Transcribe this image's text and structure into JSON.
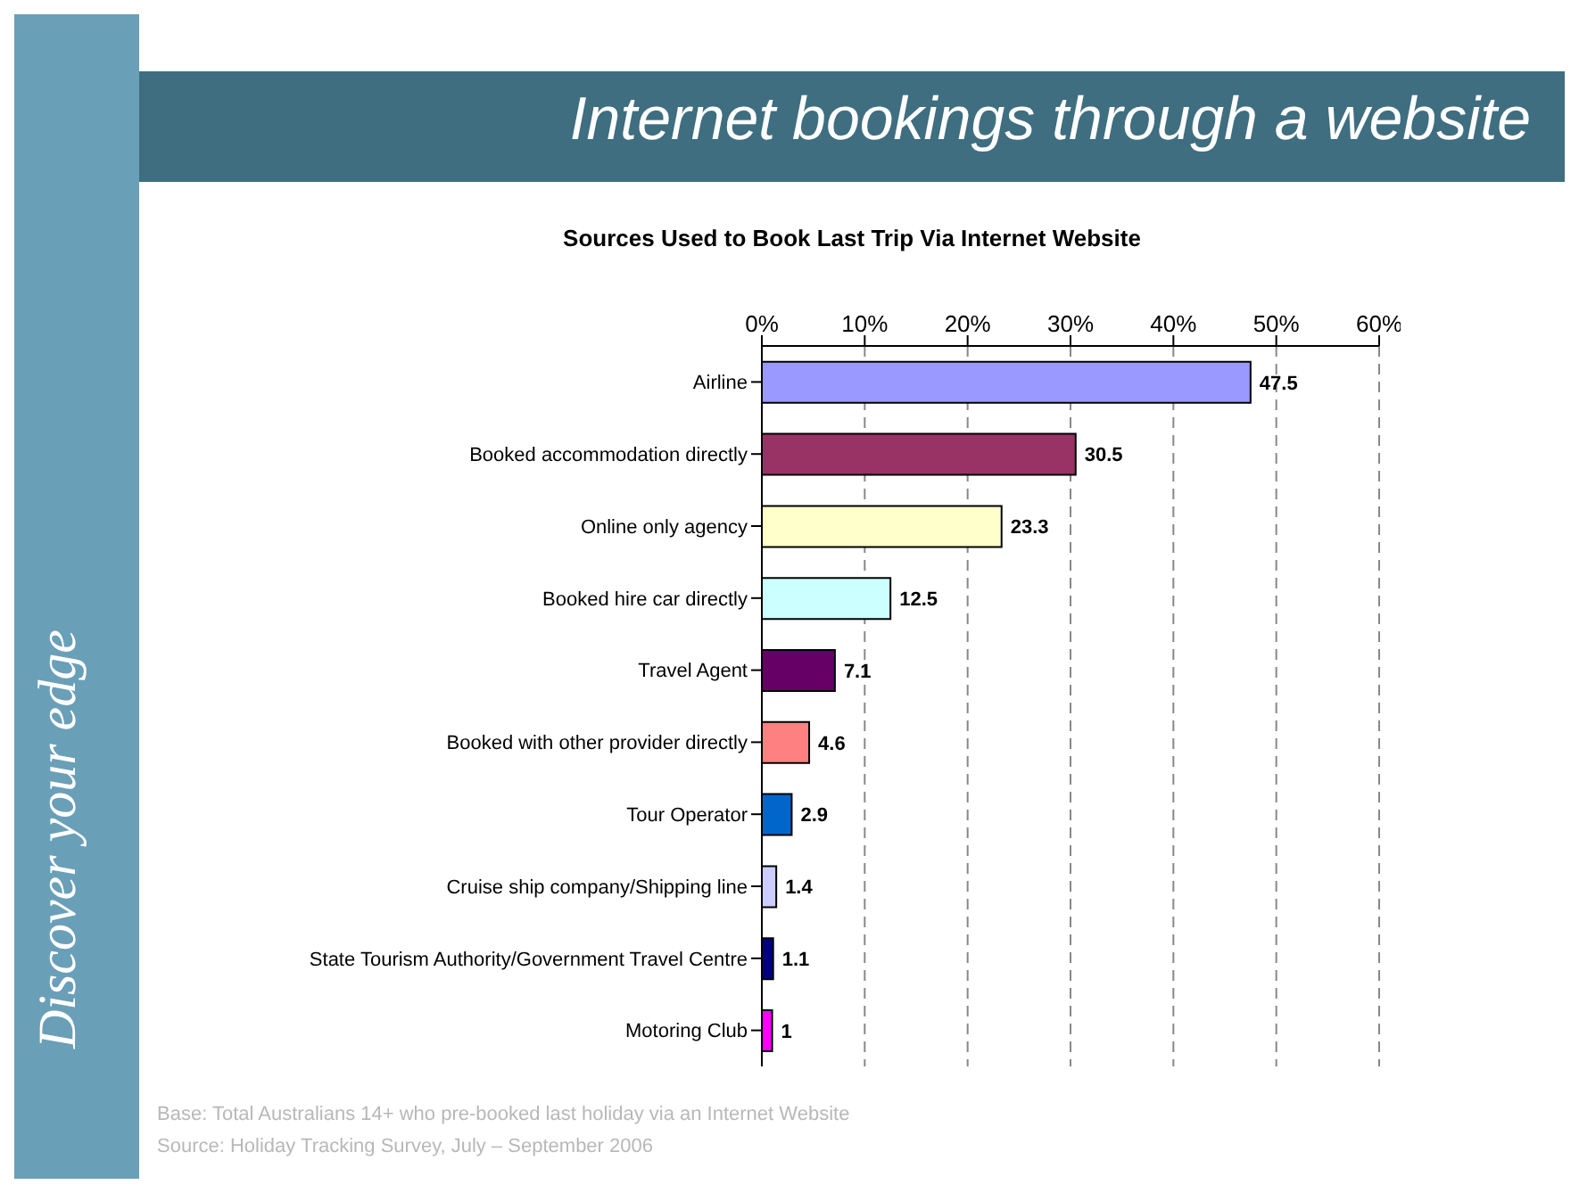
{
  "chart_data": {
    "type": "bar",
    "orientation": "horizontal",
    "title": "Internet bookings through a website",
    "subtitle": "Sources Used to Book Last Trip Via Internet Website",
    "categories": [
      "Airline",
      "Booked accommodation directly",
      "Online only agency",
      "Booked hire car directly",
      "Travel Agent",
      "Booked with other provider directly",
      "Tour Operator",
      "Cruise ship company/Shipping line",
      "State Tourism Authority/Government Travel Centre",
      "Motoring Club"
    ],
    "values": [
      47.5,
      30.5,
      23.3,
      12.5,
      7.1,
      4.6,
      2.9,
      1.4,
      1.1,
      1
    ],
    "colors": [
      "#9999ff",
      "#993366",
      "#ffffcc",
      "#ccffff",
      "#660066",
      "#ff8080",
      "#0066cc",
      "#ccccff",
      "#000080",
      "#ff00ff"
    ],
    "xlim": [
      0,
      60
    ],
    "xticks": [
      {
        "value": 0,
        "label": "0%"
      },
      {
        "value": 10,
        "label": "10%"
      },
      {
        "value": 20,
        "label": "20%"
      },
      {
        "value": 30,
        "label": "30%"
      },
      {
        "value": 40,
        "label": "40%"
      },
      {
        "value": 50,
        "label": "50%"
      },
      {
        "value": 60,
        "label": "60%"
      }
    ],
    "grid": "x",
    "data_labels": true,
    "legend": false,
    "annotations": [
      "Base: Total Australians 14+ who pre-booked  last holiday via an Internet Website",
      "Source: Holiday Tracking Survey, July – September 2006",
      "Discover your edge"
    ]
  }
}
